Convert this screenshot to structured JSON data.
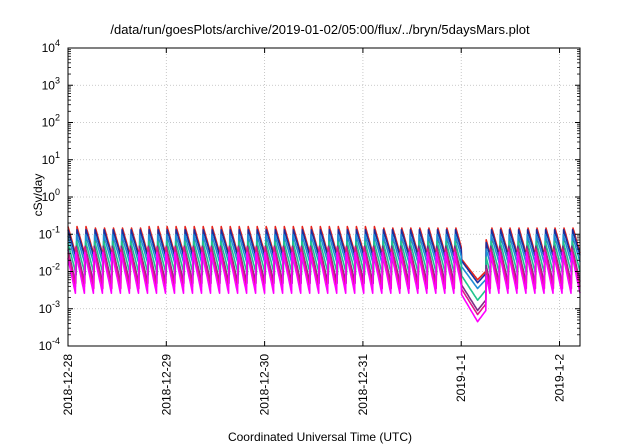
{
  "chart_data": {
    "type": "line",
    "title": "/data/run/goesPlots/archive/2019-01-02/05:00/flux/../bryn/5daysMars.plot",
    "xlabel": "Coordinated Universal Time (UTC)",
    "ylabel": "cSv/day",
    "yscale": "log",
    "ylim": [
      0.0001,
      10000
    ],
    "xlim": [
      "2018-12-28 00:00",
      "2019-01-02 05:00"
    ],
    "grid": true,
    "legend": "none",
    "y_ticks": [
      {
        "mantissa": "10",
        "exp": "-4"
      },
      {
        "mantissa": "10",
        "exp": "-3"
      },
      {
        "mantissa": "10",
        "exp": "-2"
      },
      {
        "mantissa": "10",
        "exp": "-1"
      },
      {
        "mantissa": "10",
        "exp": "0"
      },
      {
        "mantissa": "10",
        "exp": "1"
      },
      {
        "mantissa": "10",
        "exp": "2"
      },
      {
        "mantissa": "10",
        "exp": "3"
      },
      {
        "mantissa": "10",
        "exp": "4"
      }
    ],
    "x_ticks": [
      "2018-12-28",
      "2018-12-29",
      "2018-12-30",
      "2018-12-31",
      "2019-1-1",
      "2019-1-2"
    ],
    "sawtooth": {
      "period_hours": 2.2,
      "dip_start_hours": 96.0,
      "dip_min_hours": 100.0,
      "dip_end_hours": 102.0
    },
    "series": [
      {
        "color": "#e8241c",
        "peak": 0.16,
        "trough": 0.022,
        "dip_min": 0.006
      },
      {
        "color": "#1a2f9e",
        "peak": 0.14,
        "trough": 0.02,
        "dip_min": 0.005
      },
      {
        "color": "#1f8fd6",
        "peak": 0.1,
        "trough": 0.014,
        "dip_min": 0.0035
      },
      {
        "color": "#21c48e",
        "peak": 0.07,
        "trough": 0.008,
        "dip_min": 0.0017
      },
      {
        "color": "#7d2e86",
        "peak": 0.05,
        "trough": 0.0045,
        "dip_min": 0.0009
      },
      {
        "color": "#e01b86",
        "peak": 0.045,
        "trough": 0.0035,
        "dip_min": 0.0007
      },
      {
        "color": "#ff00ff",
        "peak": 0.035,
        "trough": 0.0025,
        "dip_min": 0.00045
      }
    ]
  }
}
